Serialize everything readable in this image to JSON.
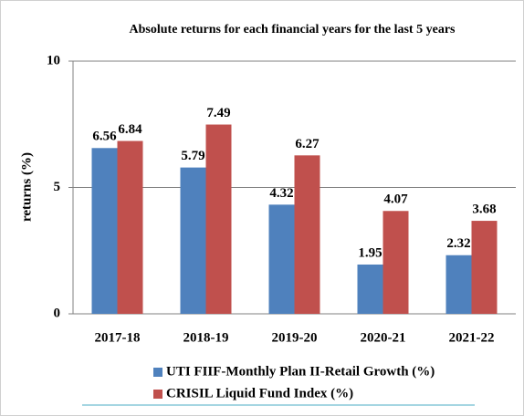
{
  "chart_data": {
    "type": "bar",
    "title": "Absolute returns for each financial years for the last 5 years",
    "y_label": "returns (%)",
    "categories": [
      "2017-18",
      "2018-19",
      "2019-20",
      "2020-21",
      "2021-22"
    ],
    "series": [
      {
        "name": "UTI FIIF-Monthly Plan II-Retail Growth (%)",
        "color": "#4f81bd",
        "values": [
          6.56,
          5.79,
          4.32,
          1.95,
          2.32
        ]
      },
      {
        "name": "CRISIL Liquid Fund Index (%)",
        "color": "#c0504d",
        "values": [
          6.84,
          7.49,
          6.27,
          4.07,
          3.68
        ]
      }
    ],
    "ylim": [
      0,
      10
    ],
    "yticks": [
      0,
      5,
      10
    ],
    "grid": true
  }
}
